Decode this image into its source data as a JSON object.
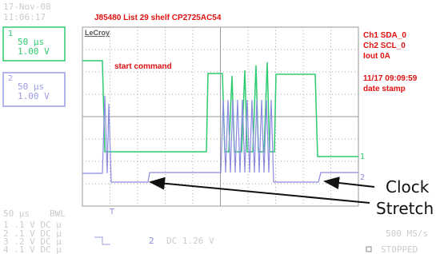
{
  "header": {
    "date": "17-Nov-08",
    "time": "11:06:17",
    "title": "J85480 List 29 shelf CP2725AC54",
    "brand": "LeCroy"
  },
  "channels": [
    {
      "id": "1",
      "timebase": "50 µs",
      "volts": "1.00 V"
    },
    {
      "id": "2",
      "timebase": "50 µs",
      "volts": "1.00 V"
    }
  ],
  "info": [
    "Ch1 SDA_0",
    "Ch2 SCL_0",
    "Iout 0A",
    "11/17 09:09:59",
    "date stamp"
  ],
  "annotations": {
    "start": "start command",
    "clock": "Clock",
    "stretch": "Stretch"
  },
  "markers": {
    "ch1": "1",
    "ch2": "2",
    "trigger": "T"
  },
  "footer": {
    "timebase": "50 µs",
    "bwl": "BWL",
    "rows": [
      "1 .1  V  DC µ",
      "2 .1  V  DC µ",
      "3 .2  V  DC µ",
      "4 .1  V  DC µ"
    ],
    "trigger_ch": "2",
    "trigger_level": "DC 1.26 V",
    "rate": "500 MS/s",
    "state": "STOPPED"
  }
}
